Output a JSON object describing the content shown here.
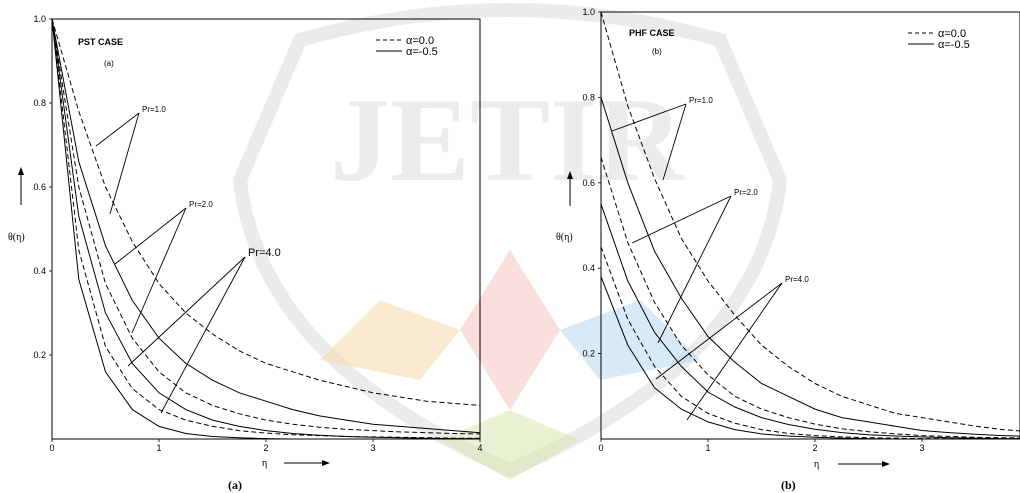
{
  "watermark": {
    "text": "JETIR"
  },
  "chart_data": [
    {
      "type": "line",
      "panel": "PST CASE",
      "panel_tag": "(a)",
      "caption": "(a)",
      "xlabel": "η",
      "ylabel": "θ(η)",
      "xlim": [
        0,
        4
      ],
      "ylim": [
        0,
        1.0
      ],
      "x_ticks": [
        "0",
        "1",
        "2",
        "3",
        "4"
      ],
      "y_ticks": [
        "0.2",
        "0.4",
        "0.6",
        "0.8",
        "1.0"
      ],
      "grid": false,
      "legend_position": "top-right",
      "legend": [
        {
          "label": "α=0.0",
          "style": "dashed"
        },
        {
          "label": "α=-0.5",
          "style": "solid"
        }
      ],
      "annotations": [
        {
          "text": "Pr=1.0",
          "x": 0.85,
          "y": 0.78
        },
        {
          "text": "Pr=2.0",
          "x": 1.28,
          "y": 0.55
        },
        {
          "text": "Pr=4.0",
          "x": 1.8,
          "y": 0.43
        }
      ],
      "x": [
        0,
        0.25,
        0.5,
        0.75,
        1,
        1.25,
        1.5,
        1.75,
        2,
        2.25,
        2.5,
        2.75,
        3,
        3.25,
        3.5,
        3.75,
        4
      ],
      "series": [
        {
          "pr": "Pr=1.0",
          "style": "dashed",
          "values": [
            1.0,
            0.78,
            0.6,
            0.47,
            0.37,
            0.3,
            0.25,
            0.21,
            0.18,
            0.16,
            0.14,
            0.125,
            0.11,
            0.1,
            0.09,
            0.085,
            0.08
          ]
        },
        {
          "pr": "Pr=1.0",
          "style": "solid",
          "values": [
            1.0,
            0.66,
            0.46,
            0.33,
            0.24,
            0.18,
            0.14,
            0.11,
            0.09,
            0.07,
            0.055,
            0.045,
            0.035,
            0.03,
            0.025,
            0.02,
            0.015
          ]
        },
        {
          "pr": "Pr=2.0",
          "style": "dashed",
          "values": [
            1.0,
            0.6,
            0.37,
            0.24,
            0.16,
            0.11,
            0.08,
            0.06,
            0.045,
            0.035,
            0.028,
            0.023,
            0.02,
            0.017,
            0.015,
            0.013,
            0.012
          ]
        },
        {
          "pr": "Pr=2.0",
          "style": "solid",
          "values": [
            1.0,
            0.53,
            0.3,
            0.18,
            0.11,
            0.07,
            0.045,
            0.03,
            0.02,
            0.013,
            0.009,
            0.006,
            0.004,
            0.003,
            0.002,
            0.001,
            0.001
          ]
        },
        {
          "pr": "Pr=4.0",
          "style": "dashed",
          "values": [
            1.0,
            0.45,
            0.22,
            0.12,
            0.07,
            0.045,
            0.03,
            0.02,
            0.014,
            0.01,
            0.008,
            0.006,
            0.005,
            0.004,
            0.003,
            0.002,
            0.002
          ]
        },
        {
          "pr": "Pr=4.0",
          "style": "solid",
          "values": [
            1.0,
            0.38,
            0.16,
            0.07,
            0.03,
            0.013,
            0.006,
            0.003,
            0.001,
            0.0,
            0.0,
            0.0,
            0.0,
            0.0,
            0.0,
            0.0,
            0.0
          ]
        }
      ]
    },
    {
      "type": "line",
      "panel": "PHF CASE",
      "panel_tag": "(b)",
      "caption": "(b)",
      "xlabel": "η",
      "ylabel": "θ(η)",
      "xlim": [
        0,
        4
      ],
      "ylim": [
        0,
        1.0
      ],
      "x_ticks": [
        "0",
        "1",
        "2",
        "3"
      ],
      "y_ticks": [
        "0.2",
        "0.4",
        "0.6",
        "0.8",
        "1.0"
      ],
      "grid": false,
      "legend_position": "top-right",
      "legend": [
        {
          "label": "α=0.0",
          "style": "dashed"
        },
        {
          "label": "α=-0.5",
          "style": "solid"
        }
      ],
      "annotations": [
        {
          "text": "Pr=1.0",
          "x": 0.85,
          "y": 0.8
        },
        {
          "text": "Pr=2.0",
          "x": 1.25,
          "y": 0.58
        },
        {
          "text": "Pr=4.0",
          "x": 1.7,
          "y": 0.39
        }
      ],
      "x": [
        0,
        0.25,
        0.5,
        0.75,
        1,
        1.25,
        1.5,
        1.75,
        2,
        2.25,
        2.5,
        2.75,
        3,
        3.25,
        3.5,
        3.75,
        4
      ],
      "series": [
        {
          "pr": "Pr=1.0",
          "style": "dashed",
          "values": [
            1.0,
            0.78,
            0.61,
            0.47,
            0.37,
            0.29,
            0.22,
            0.17,
            0.13,
            0.1,
            0.08,
            0.06,
            0.05,
            0.04,
            0.03,
            0.022,
            0.017
          ]
        },
        {
          "pr": "Pr=1.0",
          "style": "solid",
          "values": [
            0.8,
            0.6,
            0.44,
            0.33,
            0.24,
            0.18,
            0.13,
            0.1,
            0.07,
            0.05,
            0.04,
            0.03,
            0.02,
            0.015,
            0.011,
            0.008,
            0.006
          ]
        },
        {
          "pr": "Pr=2.0",
          "style": "dashed",
          "values": [
            0.66,
            0.46,
            0.32,
            0.22,
            0.15,
            0.1,
            0.07,
            0.05,
            0.035,
            0.024,
            0.017,
            0.012,
            0.008,
            0.006,
            0.004,
            0.003,
            0.002
          ]
        },
        {
          "pr": "Pr=2.0",
          "style": "solid",
          "values": [
            0.55,
            0.37,
            0.25,
            0.17,
            0.11,
            0.075,
            0.05,
            0.034,
            0.023,
            0.015,
            0.01,
            0.007,
            0.005,
            0.003,
            0.002,
            0.001,
            0.001
          ]
        },
        {
          "pr": "Pr=4.0",
          "style": "dashed",
          "values": [
            0.45,
            0.28,
            0.17,
            0.1,
            0.06,
            0.037,
            0.022,
            0.013,
            0.008,
            0.005,
            0.003,
            0.002,
            0.001,
            0.001,
            0.0,
            0.0,
            0.0
          ]
        },
        {
          "pr": "Pr=4.0",
          "style": "solid",
          "values": [
            0.38,
            0.22,
            0.12,
            0.07,
            0.04,
            0.022,
            0.012,
            0.007,
            0.004,
            0.002,
            0.001,
            0.0,
            0.0,
            0.0,
            0.0,
            0.0,
            0.0
          ]
        }
      ]
    }
  ]
}
